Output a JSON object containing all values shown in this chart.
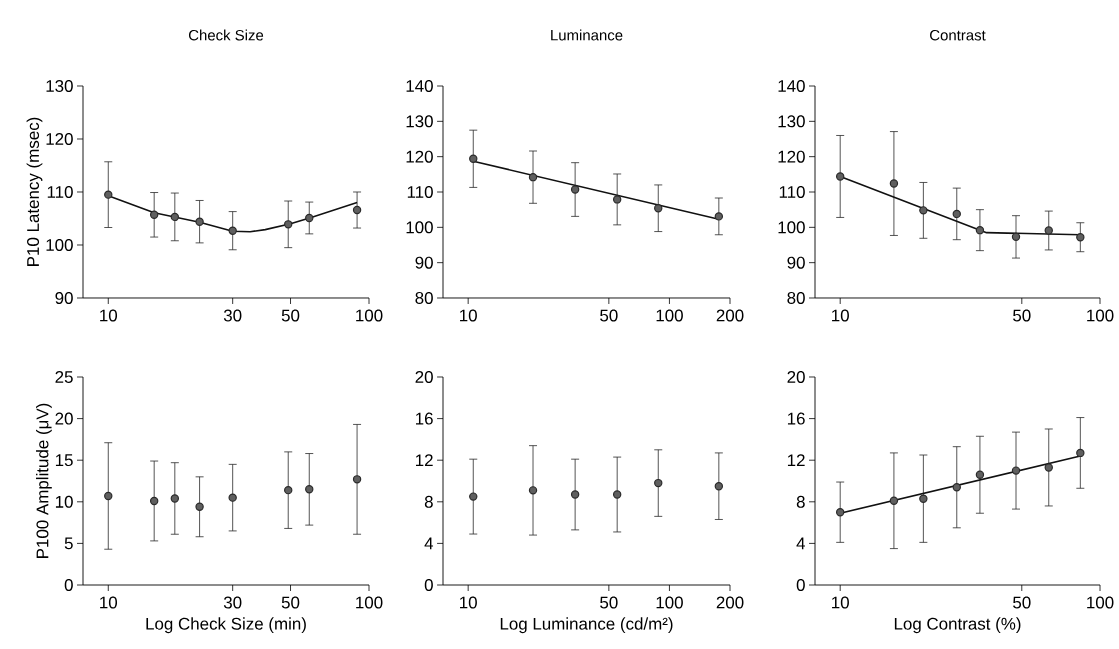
{
  "chart_data": [
    {
      "type": "scatter",
      "title": "Check Size",
      "ylabel": "P10 Latency (msec)",
      "log": "x",
      "xlim": [
        8,
        100
      ],
      "ylim": [
        90,
        130
      ],
      "xticks": [
        10,
        30,
        50,
        100
      ],
      "yticks": [
        90,
        100,
        110,
        120,
        130
      ],
      "series": [
        {
          "marker": "circle",
          "color": "#2a2a2a",
          "x": [
            10,
            15,
            18,
            22.4,
            30,
            49,
            59,
            90
          ],
          "values": [
            109.5,
            105.7,
            105.3,
            104.4,
            102.7,
            103.9,
            105.1,
            106.6
          ],
          "errors": [
            6.2,
            4.2,
            4.5,
            4,
            3.6,
            4.4,
            3,
            3.4
          ]
        },
        {
          "type": "line",
          "marker": "none",
          "color": "#111111",
          "x": [
            10,
            15,
            22.4,
            30,
            35,
            40,
            50,
            60,
            90
          ],
          "values": [
            109.3,
            106.1,
            104.3,
            102.6,
            102.5,
            102.9,
            104.0,
            105.2,
            108.0
          ]
        }
      ]
    },
    {
      "type": "scatter",
      "title": "Luminance",
      "log": "x",
      "xlim": [
        7.5,
        200
      ],
      "ylim": [
        80,
        140
      ],
      "xticks": [
        10,
        50,
        100,
        200
      ],
      "yticks": [
        80,
        90,
        100,
        110,
        120,
        130,
        140
      ],
      "series": [
        {
          "marker": "circle",
          "color": "#2a2a2a",
          "x": [
            10.6,
            21,
            34,
            55,
            88,
            176
          ],
          "values": [
            119.4,
            114.2,
            110.7,
            107.9,
            105.4,
            103.1
          ],
          "errors": [
            8.1,
            7.4,
            7.6,
            7.2,
            6.6,
            5.2
          ]
        },
        {
          "type": "line",
          "marker": "none",
          "color": "#111111",
          "x": [
            10.6,
            176
          ],
          "values": [
            118.7,
            102.3
          ]
        }
      ]
    },
    {
      "type": "scatter",
      "title": "Contrast",
      "log": "x",
      "xlim": [
        8,
        100
      ],
      "ylim": [
        80,
        140
      ],
      "xticks": [
        10,
        50,
        100
      ],
      "yticks": [
        80,
        90,
        100,
        110,
        120,
        130,
        140
      ],
      "series": [
        {
          "marker": "circle",
          "color": "#2a2a2a",
          "x": [
            10,
            16.1,
            20.9,
            28.1,
            34.5,
            47.5,
            63.5,
            84
          ],
          "values": [
            114.4,
            112.4,
            104.8,
            103.8,
            99.2,
            97.3,
            99.1,
            97.2
          ],
          "errors": [
            11.6,
            14.7,
            7.9,
            7.3,
            5.8,
            6,
            5.5,
            4.1
          ]
        },
        {
          "type": "line",
          "marker": "none",
          "color": "#111111",
          "x": [
            10,
            36.6,
            84
          ],
          "values": [
            114.4,
            98.5,
            97.9
          ]
        }
      ]
    },
    {
      "type": "scatter",
      "xlabel": "Log Check Size (min)",
      "ylabel": "P100 Amplitude (μV)",
      "log": "x",
      "xlim": [
        8,
        100
      ],
      "ylim": [
        0,
        25
      ],
      "xticks": [
        10,
        30,
        50,
        100
      ],
      "yticks": [
        0,
        5,
        10,
        15,
        20,
        25
      ],
      "series": [
        {
          "marker": "circle",
          "color": "#2a2a2a",
          "x": [
            10,
            15,
            18,
            22.4,
            30,
            49,
            59,
            90
          ],
          "values": [
            10.7,
            10.1,
            10.4,
            9.4,
            10.5,
            11.4,
            11.5,
            12.7
          ],
          "errors": [
            6.4,
            4.8,
            4.3,
            3.6,
            4,
            4.6,
            4.3,
            6.6
          ]
        }
      ]
    },
    {
      "type": "scatter",
      "xlabel": "Log Luminance (cd/m²)",
      "log": "x",
      "xlim": [
        7.5,
        200
      ],
      "ylim": [
        0,
        20
      ],
      "xticks": [
        10,
        50,
        100,
        200
      ],
      "yticks": [
        0,
        4,
        8,
        12,
        16,
        20
      ],
      "series": [
        {
          "marker": "circle",
          "color": "#2a2a2a",
          "x": [
            10.6,
            21,
            34,
            55,
            88,
            176
          ],
          "values": [
            8.5,
            9.1,
            8.7,
            8.7,
            9.8,
            9.5
          ],
          "errors": [
            3.6,
            4.3,
            3.4,
            3.6,
            3.2,
            3.2
          ]
        }
      ]
    },
    {
      "type": "scatter",
      "xlabel": "Log Contrast (%)",
      "log": "x",
      "xlim": [
        8,
        100
      ],
      "ylim": [
        0,
        20
      ],
      "xticks": [
        10,
        50,
        100
      ],
      "yticks": [
        0,
        4,
        8,
        12,
        16,
        20
      ],
      "series": [
        {
          "marker": "circle",
          "color": "#2a2a2a",
          "x": [
            10,
            16.1,
            20.9,
            28.1,
            34.5,
            47.5,
            63.5,
            84
          ],
          "values": [
            7.0,
            8.1,
            8.3,
            9.4,
            10.6,
            11.0,
            11.3,
            12.7
          ],
          "errors": [
            2.9,
            4.6,
            4.2,
            3.9,
            3.7,
            3.7,
            3.7,
            3.4
          ]
        },
        {
          "type": "line",
          "marker": "none",
          "color": "#111111",
          "x": [
            10,
            84
          ],
          "values": [
            6.9,
            12.4
          ]
        }
      ]
    }
  ]
}
